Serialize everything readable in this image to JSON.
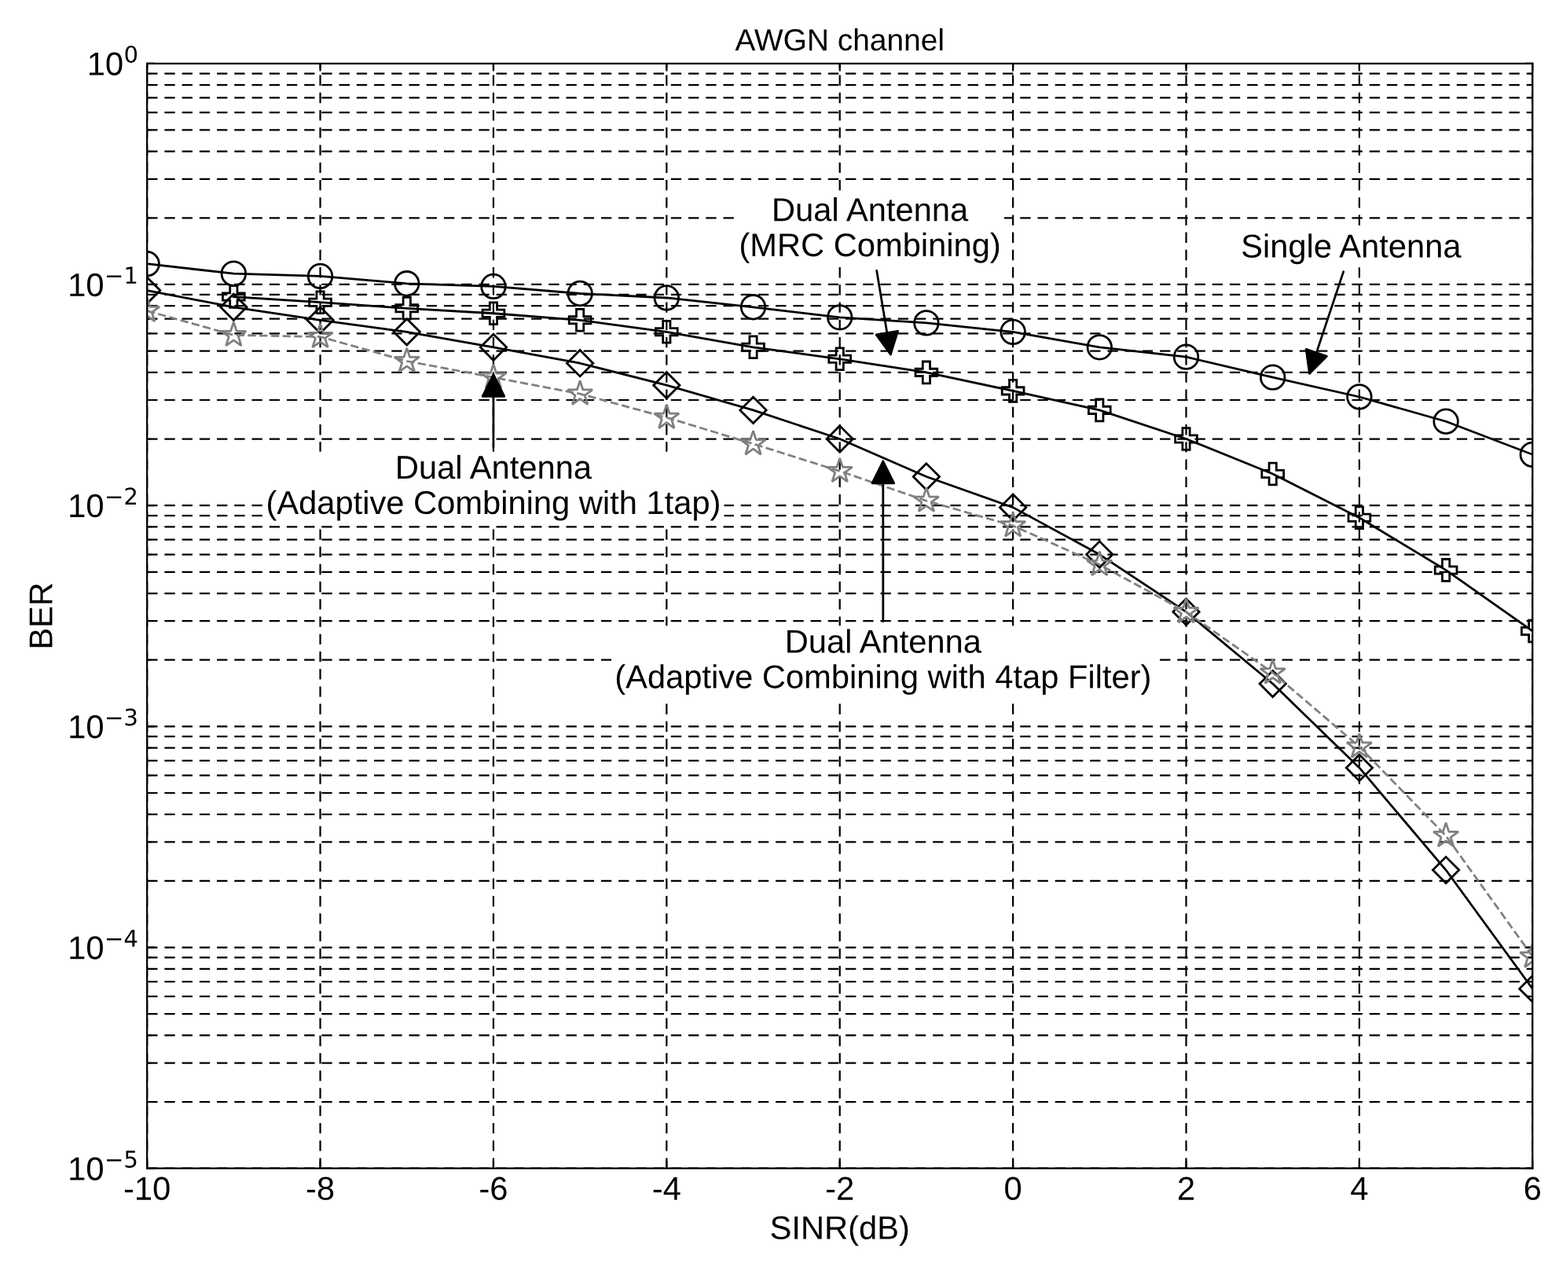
{
  "chart_data": {
    "type": "line",
    "title": "AWGN channel",
    "xlabel": "SINR(dB)",
    "ylabel": "BER",
    "x": [
      -10,
      -9,
      -8,
      -7,
      -6,
      -5,
      -4,
      -3,
      -2,
      -1,
      0,
      1,
      2,
      3,
      4,
      5,
      6
    ],
    "series": [
      {
        "color": "#000000",
        "marker": "circle",
        "line_style": "solid",
        "values": [
          0.124,
          0.112,
          0.109,
          0.101,
          0.098,
          0.091,
          0.087,
          0.079,
          0.071,
          0.067,
          0.061,
          0.052,
          0.047,
          0.038,
          0.031,
          0.024,
          0.017
        ]
      },
      {
        "color": "#000000",
        "marker": "cross",
        "line_style": "solid",
        "values": [
          null,
          0.088,
          0.083,
          0.078,
          0.074,
          0.069,
          0.061,
          0.052,
          0.046,
          0.04,
          0.033,
          0.027,
          0.02,
          0.0139,
          0.0088,
          0.0051,
          0.0027
        ]
      },
      {
        "color": "#000000",
        "marker": "diamond",
        "line_style": "solid",
        "values": [
          0.094,
          0.079,
          0.069,
          0.061,
          0.052,
          0.044,
          0.035,
          0.027,
          0.02,
          0.0135,
          0.0098,
          0.006,
          0.0033,
          0.00156,
          0.00065,
          0.000224,
          6.5e-05
        ]
      },
      {
        "color": "#808080",
        "marker": "star",
        "line_style": "dashed",
        "values": [
          0.076,
          0.059,
          0.058,
          0.045,
          0.038,
          0.032,
          0.025,
          0.019,
          0.0143,
          0.0105,
          0.0081,
          0.0054,
          0.0033,
          0.00175,
          0.00081,
          0.00032,
          9.1e-05
        ]
      }
    ],
    "log": "y",
    "xlim": [
      -10,
      6
    ],
    "xticks": [
      -10,
      -8,
      -6,
      -4,
      -2,
      0,
      2,
      4,
      6
    ],
    "ylim": [
      1e-05,
      1
    ],
    "yticks": [
      {
        "value": 1e-05,
        "label": "10$^{−5}$"
      },
      {
        "value": 0.0001,
        "label": "10$^{−4}$"
      },
      {
        "value": 0.001,
        "label": "10$^{−3}$"
      },
      {
        "value": 0.01,
        "label": "10$^{−2}$"
      },
      {
        "value": 0.1,
        "label": "10$^{−1}$"
      },
      {
        "value": 1,
        "label": "10$^{0}$"
      }
    ],
    "grid": true,
    "legend": false,
    "annotations": [
      {
        "text": "Dual Antenna\n(MRC Combining)",
        "x": -1.4,
        "y": 0.045
      },
      {
        "text": "Single Antenna",
        "x": 3.4,
        "y": 0.037
      },
      {
        "text": "Dual Antenna\n(Adaptive Combining with 1tap)",
        "x": -6,
        "y": 0.042
      },
      {
        "text": "Dual Antenna\n(Adaptive Combining with 4tap Filter)",
        "x": -1.5,
        "y": 0.017
      }
    ]
  }
}
